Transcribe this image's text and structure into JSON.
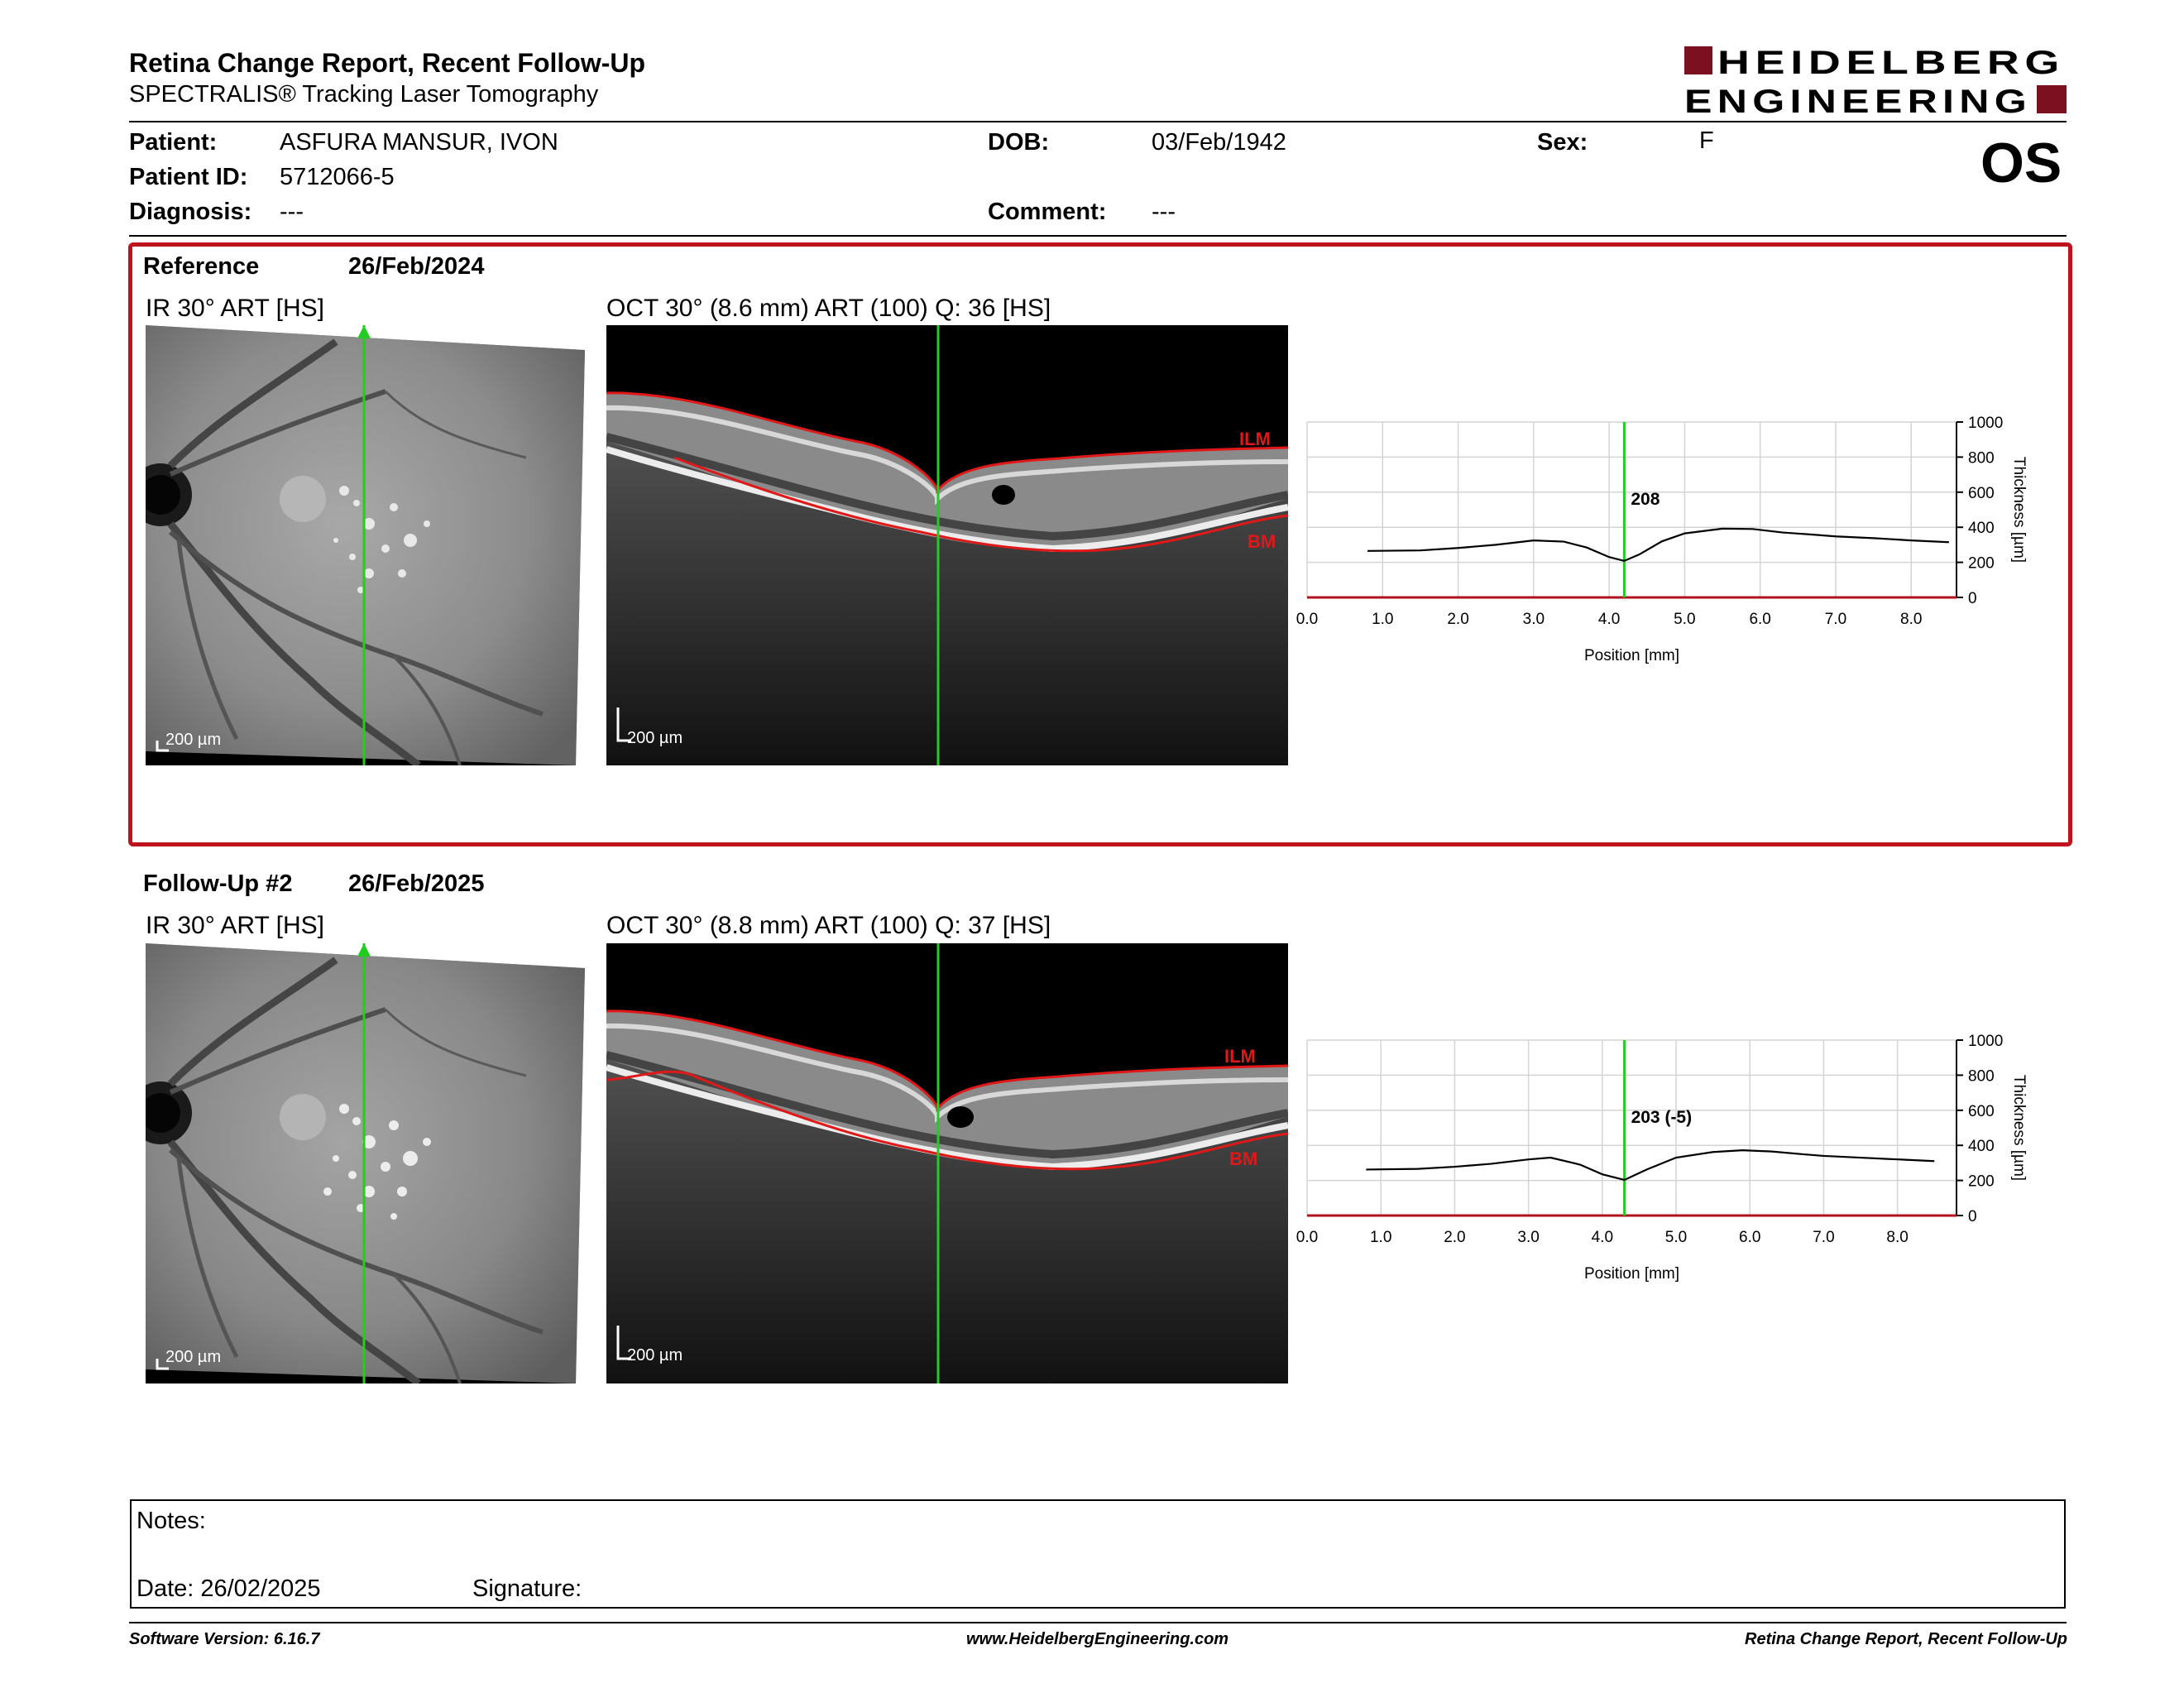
{
  "header": {
    "title": "Retina Change Report, Recent Follow-Up",
    "subtitle": "SPECTRALIS® Tracking Laser Tomography",
    "logo_line1": "HEIDELBERG",
    "logo_line2": "ENGINEERING"
  },
  "patient": {
    "name_label": "Patient:",
    "name": "ASFURA MANSUR, IVON",
    "id_label": "Patient ID:",
    "id": "5712066-5",
    "diagnosis_label": "Diagnosis:",
    "diagnosis": "---",
    "dob_label": "DOB:",
    "dob": "03/Feb/1942",
    "comment_label": "Comment:",
    "comment": "---",
    "sex_label": "Sex:",
    "sex": "F",
    "eye": "OS"
  },
  "reference": {
    "label": "Reference",
    "date": "26/Feb/2024",
    "ir_caption": "IR 30° ART [HS]",
    "oct_caption": "OCT 30° (8.6 mm) ART (100) Q: 36 [HS]",
    "scale_bar": "200 µm",
    "ilm_label": "ILM",
    "bm_label": "BM",
    "cursor_value": "208"
  },
  "followup": {
    "label": "Follow-Up #2",
    "date": "26/Feb/2025",
    "ir_caption": "IR 30° ART [HS]",
    "oct_caption": "OCT 30° (8.8 mm) ART (100) Q: 37 [HS]",
    "scale_bar": "200 µm",
    "ilm_label": "ILM",
    "bm_label": "BM",
    "cursor_value": "203 (-5)"
  },
  "chart_data": [
    {
      "type": "line",
      "xlabel": "Position [mm]",
      "ylabel": "Thickness [µm]",
      "xlim": [
        0,
        8.6
      ],
      "ylim": [
        0,
        1000
      ],
      "xticks": [
        "0.0",
        "1.0",
        "2.0",
        "3.0",
        "4.0",
        "5.0",
        "6.0",
        "7.0",
        "8.0"
      ],
      "yticks": [
        "0",
        "200",
        "400",
        "600",
        "800",
        "1000"
      ],
      "cursor_x": 4.2,
      "cursor_label": "208",
      "series": [
        {
          "x": [
            0.8,
            1.5,
            2.0,
            2.5,
            3.0,
            3.4,
            3.7,
            4.0,
            4.2,
            4.4,
            4.7,
            5.0,
            5.5,
            5.9,
            6.3,
            6.7,
            7.0,
            7.5,
            8.0,
            8.5
          ],
          "y": [
            265,
            268,
            282,
            300,
            325,
            318,
            285,
            230,
            208,
            245,
            320,
            365,
            392,
            390,
            370,
            358,
            348,
            338,
            325,
            315
          ]
        }
      ]
    },
    {
      "type": "line",
      "xlabel": "Position [mm]",
      "ylabel": "Thickness [µm]",
      "xlim": [
        0,
        8.8
      ],
      "ylim": [
        0,
        1000
      ],
      "xticks": [
        "0.0",
        "1.0",
        "2.0",
        "3.0",
        "4.0",
        "5.0",
        "6.0",
        "7.0",
        "8.0"
      ],
      "yticks": [
        "0",
        "200",
        "400",
        "600",
        "800",
        "1000"
      ],
      "cursor_x": 4.3,
      "cursor_label": "203 (-5)",
      "series": [
        {
          "x": [
            0.8,
            1.5,
            2.0,
            2.5,
            3.0,
            3.3,
            3.7,
            4.0,
            4.3,
            4.6,
            5.0,
            5.5,
            5.9,
            6.3,
            6.7,
            7.0,
            7.5,
            8.0,
            8.5
          ],
          "y": [
            262,
            266,
            278,
            295,
            320,
            330,
            290,
            235,
            203,
            262,
            330,
            362,
            372,
            365,
            350,
            340,
            330,
            320,
            310
          ]
        }
      ]
    }
  ],
  "notes": {
    "label": "Notes:",
    "date_label": "Date: 26/02/2025",
    "signature_label": "Signature:"
  },
  "footer": {
    "software": "Software Version: 6.16.7",
    "website": "www.HeidelbergEngineering.com",
    "report_name": "Retina Change Report, Recent Follow-Up"
  },
  "colors": {
    "accent": "#c0121d",
    "cursor": "#22cc22",
    "segmentation": "#e01818",
    "logo": "#7b1020"
  }
}
